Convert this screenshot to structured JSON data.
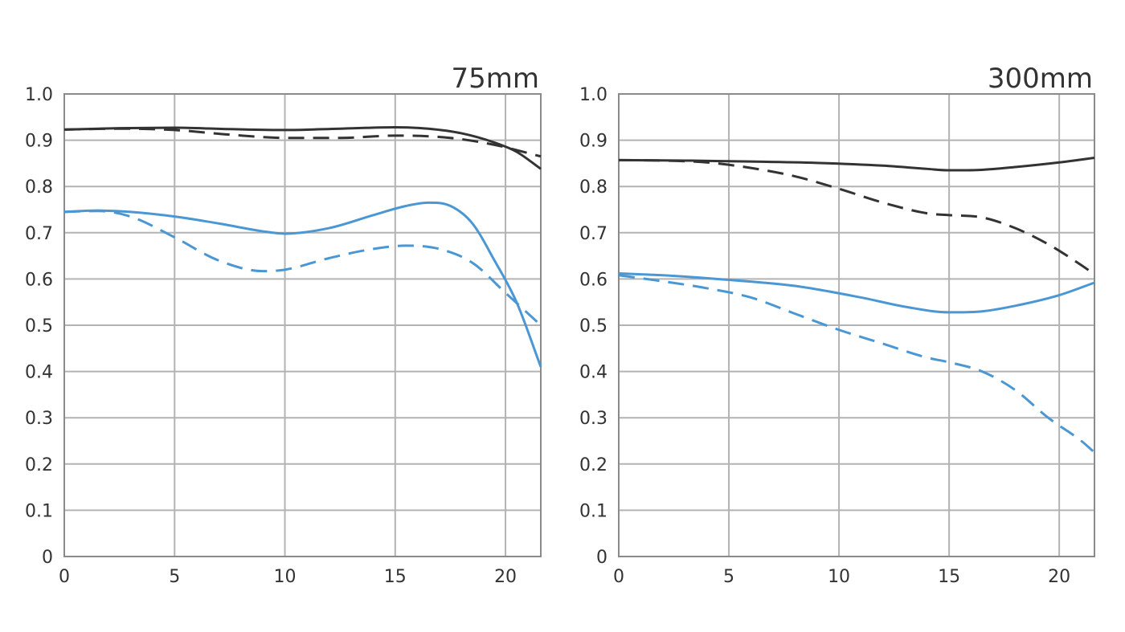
{
  "chart_data": [
    {
      "type": "line",
      "title": "75mm",
      "xlabel": "",
      "ylabel": "",
      "xlim": [
        0,
        21.6
      ],
      "ylim": [
        0,
        1.0
      ],
      "xticks": [
        0,
        5,
        10,
        15,
        20
      ],
      "yticks": [
        0,
        0.1,
        0.2,
        0.3,
        0.4,
        0.5,
        0.6,
        0.7,
        0.8,
        0.9,
        1.0
      ],
      "ytick_labels": [
        "0",
        "0.1",
        "0.2",
        "0.3",
        "0.4",
        "0.5",
        "0.6",
        "0.7",
        "0.8",
        "0.9",
        "1.0"
      ],
      "grid": true,
      "series": [
        {
          "color": "#333333",
          "dash": false,
          "x": [
            0,
            2.5,
            5,
            7.5,
            10,
            12.5,
            15,
            16.5,
            18,
            19.5,
            20.5,
            21.6
          ],
          "y": [
            0.923,
            0.926,
            0.927,
            0.924,
            0.922,
            0.925,
            0.928,
            0.925,
            0.915,
            0.895,
            0.875,
            0.838
          ]
        },
        {
          "color": "#333333",
          "dash": true,
          "x": [
            0,
            2.5,
            5,
            7.5,
            10,
            12.5,
            15,
            17.5,
            19.5,
            21.6
          ],
          "y": [
            0.923,
            0.925,
            0.922,
            0.912,
            0.905,
            0.905,
            0.91,
            0.905,
            0.89,
            0.865
          ]
        },
        {
          "color": "#4a97d4",
          "dash": false,
          "x": [
            0,
            1.5,
            3,
            5,
            7,
            9,
            10,
            12,
            14,
            15.5,
            16.5,
            17.5,
            18.5,
            19.5,
            20.5,
            21.6
          ],
          "y": [
            0.745,
            0.748,
            0.745,
            0.735,
            0.72,
            0.703,
            0.698,
            0.71,
            0.738,
            0.758,
            0.765,
            0.758,
            0.72,
            0.64,
            0.55,
            0.41
          ]
        },
        {
          "color": "#4a97d4",
          "dash": true,
          "x": [
            0,
            1.5,
            3,
            5,
            7,
            9,
            10,
            12,
            14,
            15.5,
            17,
            18.5,
            20,
            21.6
          ],
          "y": [
            0.745,
            0.747,
            0.735,
            0.69,
            0.64,
            0.617,
            0.62,
            0.645,
            0.665,
            0.672,
            0.665,
            0.635,
            0.57,
            0.5
          ]
        }
      ]
    },
    {
      "type": "line",
      "title": "300mm",
      "xlabel": "",
      "ylabel": "",
      "xlim": [
        0,
        21.6
      ],
      "ylim": [
        0,
        1.0
      ],
      "xticks": [
        0,
        5,
        10,
        15,
        20
      ],
      "yticks": [
        0,
        0.1,
        0.2,
        0.3,
        0.4,
        0.5,
        0.6,
        0.7,
        0.8,
        0.9,
        1.0
      ],
      "ytick_labels": [
        "0",
        "0.1",
        "0.2",
        "0.3",
        "0.4",
        "0.5",
        "0.6",
        "0.7",
        "0.8",
        "0.9",
        "1.0"
      ],
      "grid": true,
      "series": [
        {
          "color": "#333333",
          "dash": false,
          "x": [
            0,
            3,
            6,
            9,
            12,
            14,
            15,
            16.5,
            18,
            20,
            21.6
          ],
          "y": [
            0.857,
            0.856,
            0.854,
            0.851,
            0.845,
            0.838,
            0.835,
            0.836,
            0.842,
            0.852,
            0.862
          ]
        },
        {
          "color": "#333333",
          "dash": true,
          "x": [
            0,
            2,
            4,
            6,
            8,
            10,
            12,
            14,
            15,
            16.5,
            18,
            19.5,
            21,
            21.6
          ],
          "y": [
            0.857,
            0.856,
            0.852,
            0.84,
            0.822,
            0.795,
            0.765,
            0.742,
            0.738,
            0.733,
            0.71,
            0.675,
            0.63,
            0.61
          ]
        },
        {
          "color": "#4a97d4",
          "dash": false,
          "x": [
            0,
            2,
            5,
            8,
            11,
            13,
            15,
            16.5,
            18,
            20,
            21.6
          ],
          "y": [
            0.612,
            0.608,
            0.598,
            0.585,
            0.56,
            0.54,
            0.528,
            0.53,
            0.542,
            0.565,
            0.592
          ]
        },
        {
          "color": "#4a97d4",
          "dash": true,
          "x": [
            0,
            2,
            4,
            6,
            8,
            10,
            12,
            14,
            15,
            16.5,
            18,
            19.5,
            21,
            21.6
          ],
          "y": [
            0.608,
            0.595,
            0.58,
            0.56,
            0.525,
            0.49,
            0.46,
            0.43,
            0.42,
            0.4,
            0.36,
            0.3,
            0.25,
            0.225
          ]
        }
      ]
    }
  ]
}
